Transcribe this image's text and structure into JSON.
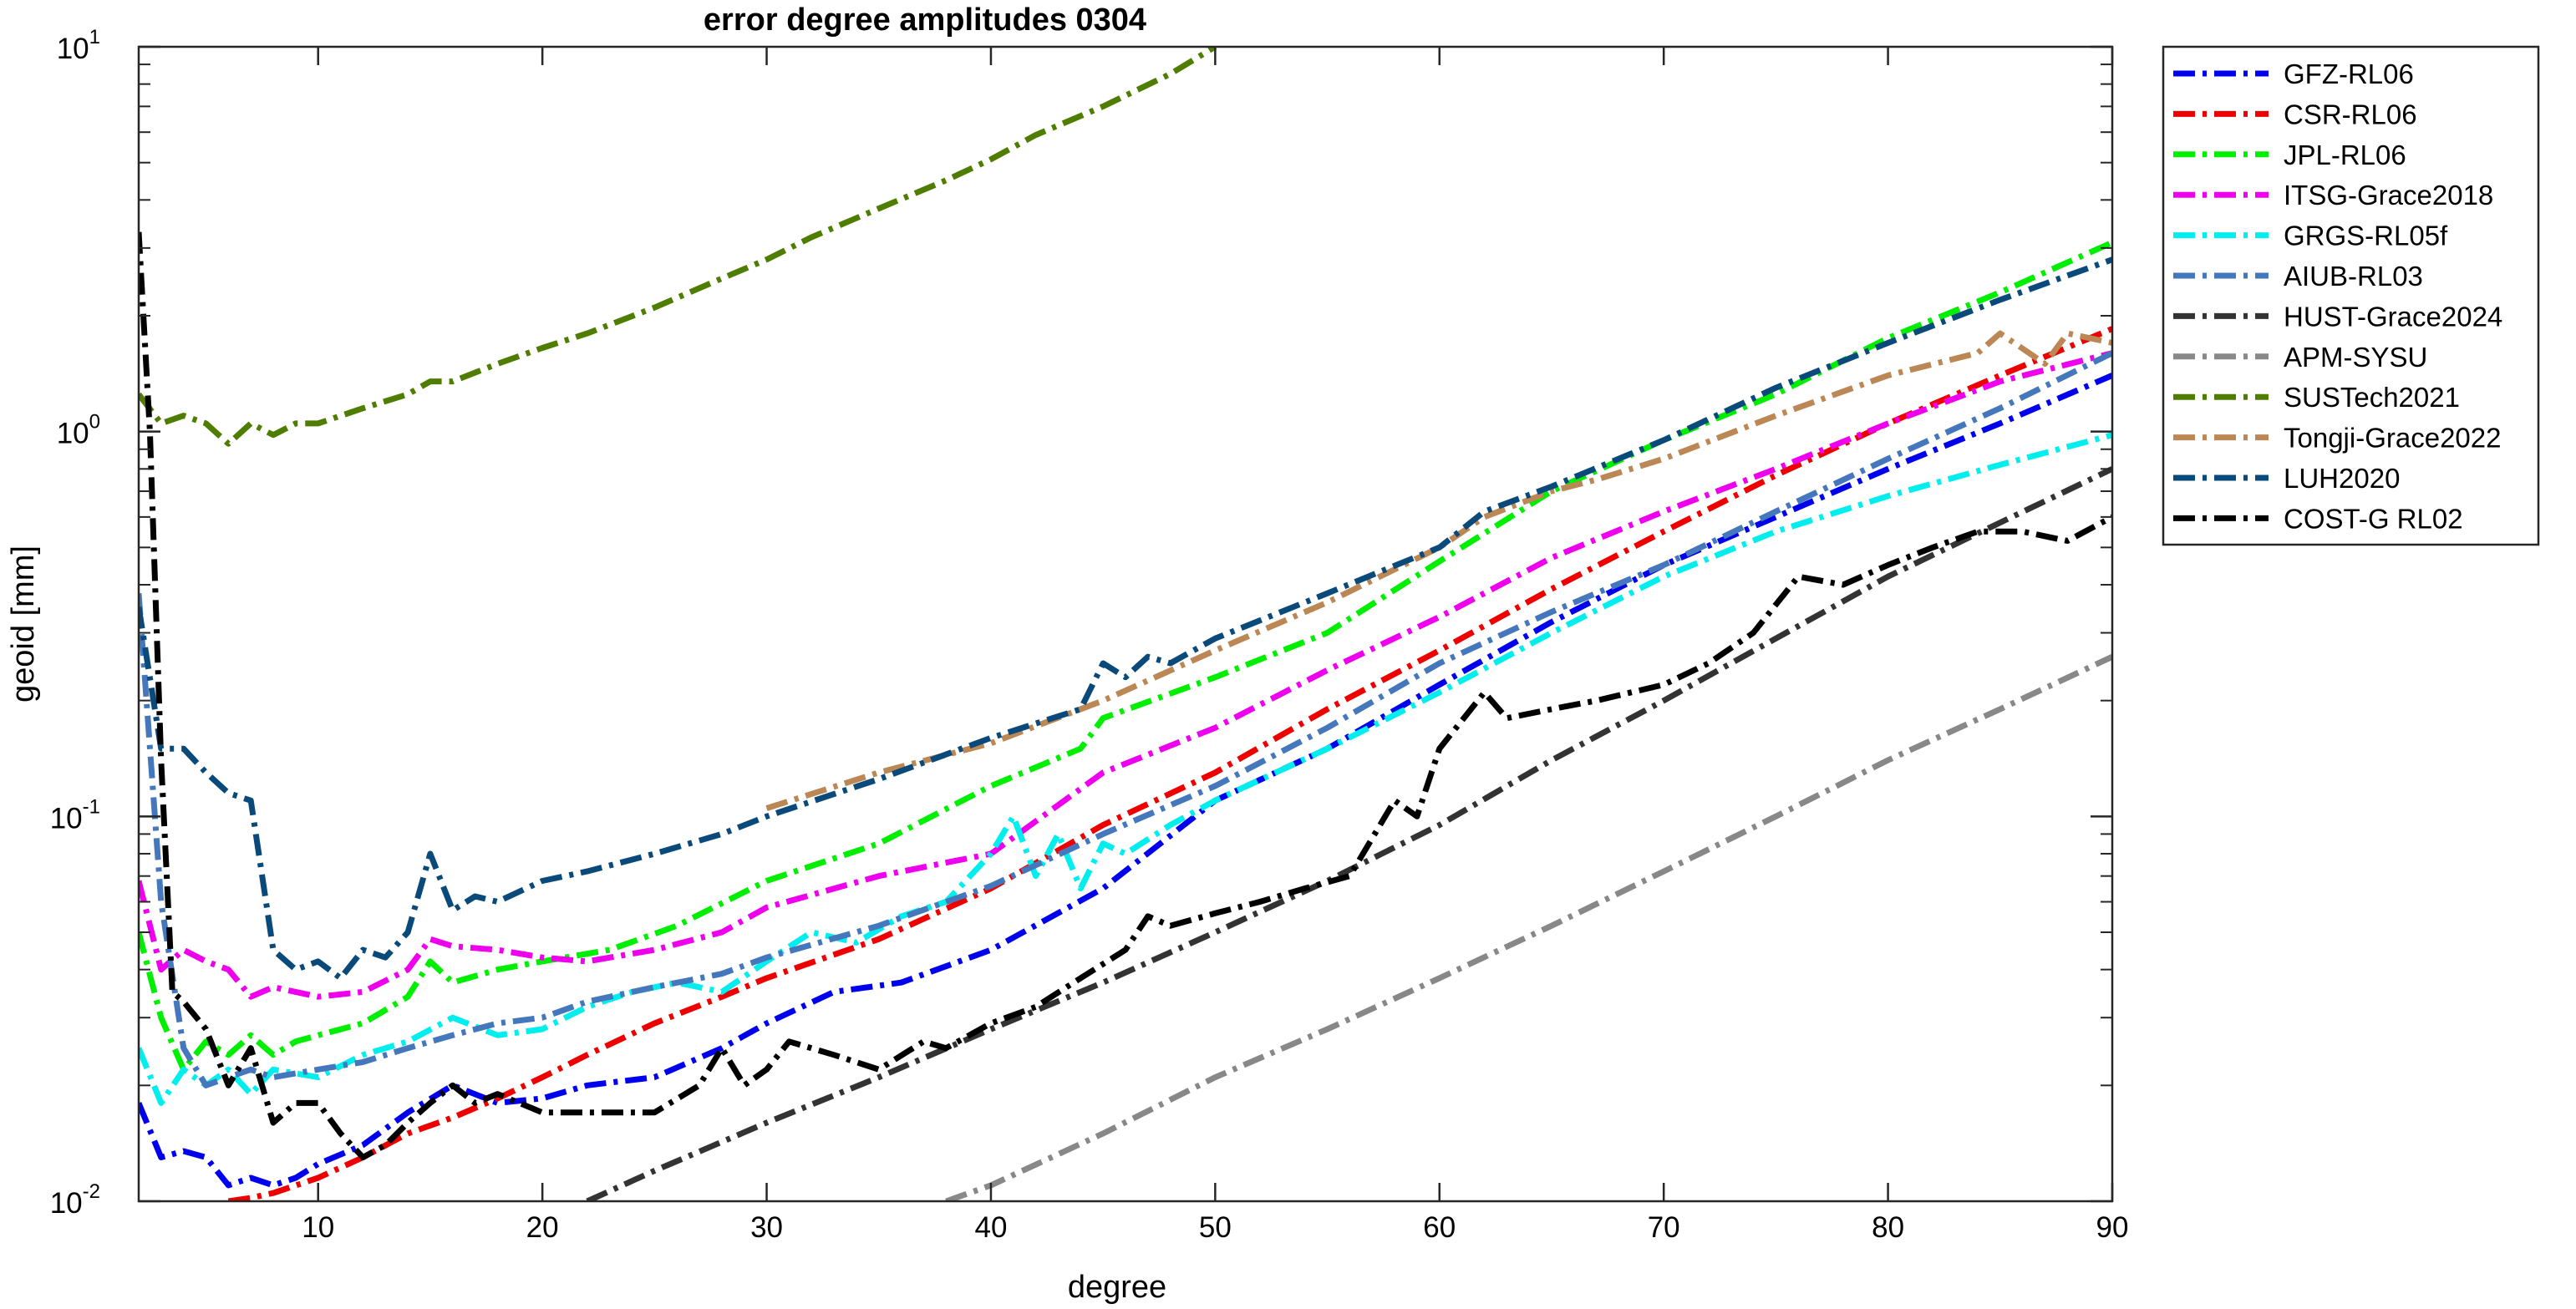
{
  "chart_data": {
    "type": "line",
    "title": "error degree amplitudes 0304",
    "xlabel": "degree",
    "ylabel": "geoid [mm]",
    "x_range": [
      2,
      90
    ],
    "y_range": [
      0.01,
      10
    ],
    "y_scale": "log",
    "grid": false,
    "legend_position": "outside-right",
    "x_ticks": [
      10,
      20,
      30,
      40,
      50,
      60,
      70,
      80,
      90
    ],
    "y_ticks": [
      {
        "value": 0.01,
        "base": "10",
        "exp": "-2"
      },
      {
        "value": 0.1,
        "base": "10",
        "exp": "-1"
      },
      {
        "value": 1,
        "base": "10",
        "exp": "0"
      },
      {
        "value": 10,
        "base": "10",
        "exp": "1"
      }
    ],
    "series": [
      {
        "name": "GFZ-RL06",
        "color": "#0000ee",
        "x": [
          2,
          3,
          4,
          5,
          6,
          7,
          8,
          9,
          10,
          12,
          14,
          16,
          18,
          20,
          22,
          25,
          28,
          30,
          33,
          36,
          40,
          45,
          50,
          55,
          60,
          65,
          70,
          75,
          80,
          85,
          90
        ],
        "y": [
          0.018,
          0.013,
          0.0135,
          0.013,
          0.011,
          0.0115,
          0.011,
          0.0115,
          0.0125,
          0.014,
          0.017,
          0.02,
          0.018,
          0.0185,
          0.02,
          0.021,
          0.025,
          0.029,
          0.035,
          0.037,
          0.045,
          0.065,
          0.11,
          0.15,
          0.22,
          0.32,
          0.45,
          0.6,
          0.8,
          1.05,
          1.4
        ]
      },
      {
        "name": "CSR-RL06",
        "color": "#ee0000",
        "x": [
          6,
          7,
          8,
          10,
          12,
          14,
          16,
          18,
          20,
          22,
          25,
          28,
          30,
          35,
          40,
          45,
          50,
          55,
          60,
          65,
          70,
          75,
          80,
          85,
          90
        ],
        "y": [
          0.01,
          0.0102,
          0.0105,
          0.0115,
          0.013,
          0.015,
          0.0165,
          0.0185,
          0.021,
          0.024,
          0.029,
          0.034,
          0.038,
          0.048,
          0.065,
          0.095,
          0.13,
          0.19,
          0.27,
          0.39,
          0.55,
          0.77,
          1.05,
          1.4,
          1.85
        ]
      },
      {
        "name": "JPL-RL06",
        "color": "#00ee00",
        "x": [
          2,
          3,
          4,
          5,
          6,
          7,
          8,
          9,
          10,
          12,
          14,
          15,
          16,
          18,
          20,
          23,
          26,
          30,
          35,
          40,
          44,
          45,
          50,
          55,
          60,
          65,
          70,
          75,
          80,
          85,
          90
        ],
        "y": [
          0.05,
          0.03,
          0.022,
          0.026,
          0.024,
          0.027,
          0.024,
          0.026,
          0.027,
          0.029,
          0.034,
          0.042,
          0.037,
          0.04,
          0.042,
          0.045,
          0.052,
          0.068,
          0.085,
          0.12,
          0.15,
          0.18,
          0.23,
          0.3,
          0.46,
          0.7,
          0.95,
          1.25,
          1.75,
          2.3,
          3.1
        ]
      },
      {
        "name": "ITSG-Grace2018",
        "color": "#ee00ee",
        "x": [
          2,
          3,
          4,
          5,
          6,
          7,
          8,
          10,
          12,
          14,
          15,
          16,
          18,
          20,
          22,
          25,
          28,
          30,
          35,
          40,
          45,
          50,
          55,
          60,
          65,
          70,
          75,
          80,
          85,
          90
        ],
        "y": [
          0.068,
          0.04,
          0.045,
          0.042,
          0.04,
          0.034,
          0.036,
          0.034,
          0.035,
          0.04,
          0.048,
          0.046,
          0.045,
          0.043,
          0.042,
          0.045,
          0.05,
          0.058,
          0.07,
          0.08,
          0.13,
          0.17,
          0.24,
          0.33,
          0.47,
          0.62,
          0.8,
          1.05,
          1.35,
          1.6
        ]
      },
      {
        "name": "GRGS-RL05f",
        "color": "#00eeee",
        "x": [
          2,
          3,
          4,
          5,
          6,
          7,
          8,
          10,
          12,
          14,
          16,
          18,
          20,
          22,
          24,
          26,
          28,
          30,
          32,
          34,
          36,
          38,
          40,
          41,
          42,
          43,
          44,
          45,
          46,
          48,
          50,
          55,
          60,
          65,
          70,
          75,
          80,
          85,
          90
        ],
        "y": [
          0.025,
          0.018,
          0.022,
          0.02,
          0.022,
          0.019,
          0.022,
          0.021,
          0.024,
          0.026,
          0.03,
          0.027,
          0.028,
          0.032,
          0.035,
          0.037,
          0.035,
          0.042,
          0.05,
          0.047,
          0.055,
          0.06,
          0.08,
          0.1,
          0.07,
          0.09,
          0.065,
          0.085,
          0.08,
          0.095,
          0.11,
          0.15,
          0.21,
          0.3,
          0.42,
          0.55,
          0.68,
          0.82,
          0.98
        ]
      },
      {
        "name": "AIUB-RL03",
        "color": "#4477bb",
        "x": [
          2,
          3,
          4,
          5,
          6,
          7,
          8,
          10,
          12,
          14,
          16,
          18,
          20,
          22,
          25,
          28,
          30,
          35,
          40,
          45,
          50,
          55,
          60,
          65,
          70,
          75,
          80,
          85,
          90
        ],
        "y": [
          0.38,
          0.06,
          0.025,
          0.02,
          0.021,
          0.022,
          0.021,
          0.022,
          0.023,
          0.025,
          0.027,
          0.029,
          0.03,
          0.033,
          0.036,
          0.039,
          0.043,
          0.052,
          0.066,
          0.09,
          0.12,
          0.17,
          0.25,
          0.34,
          0.45,
          0.62,
          0.85,
          1.15,
          1.6
        ]
      },
      {
        "name": "HUST-Grace2024",
        "color": "#333333",
        "x": [
          22,
          25,
          30,
          35,
          40,
          45,
          50,
          55,
          60,
          65,
          70,
          75,
          80,
          85,
          90
        ],
        "y": [
          0.01,
          0.012,
          0.016,
          0.021,
          0.028,
          0.037,
          0.05,
          0.068,
          0.095,
          0.14,
          0.2,
          0.29,
          0.42,
          0.58,
          0.8
        ]
      },
      {
        "name": "APM-SYSU",
        "color": "#888888",
        "x": [
          38,
          40,
          45,
          50,
          55,
          60,
          65,
          70,
          75,
          80,
          85,
          90
        ],
        "y": [
          0.01,
          0.011,
          0.015,
          0.021,
          0.028,
          0.038,
          0.052,
          0.072,
          0.1,
          0.14,
          0.19,
          0.26
        ]
      },
      {
        "name": "SUSTech2021",
        "color": "#4e7d00",
        "x": [
          2,
          3,
          4,
          5,
          6,
          7,
          8,
          9,
          10,
          12,
          14,
          15,
          16,
          18,
          20,
          22,
          25,
          28,
          30,
          32,
          35,
          38,
          40,
          42,
          45,
          48,
          50
        ],
        "y": [
          1.25,
          1.05,
          1.1,
          1.05,
          0.93,
          1.05,
          0.98,
          1.05,
          1.05,
          1.15,
          1.25,
          1.35,
          1.35,
          1.5,
          1.65,
          1.8,
          2.1,
          2.5,
          2.8,
          3.2,
          3.8,
          4.5,
          5.1,
          5.9,
          7.0,
          8.5,
          10.0
        ]
      },
      {
        "name": "Tongji-Grace2022",
        "color": "#bb8855",
        "x": [
          30,
          35,
          40,
          45,
          50,
          55,
          60,
          62,
          65,
          67,
          70,
          75,
          80,
          84,
          85,
          87,
          88,
          90
        ],
        "y": [
          0.105,
          0.13,
          0.155,
          0.2,
          0.27,
          0.36,
          0.5,
          0.6,
          0.7,
          0.75,
          0.85,
          1.1,
          1.4,
          1.6,
          1.8,
          1.5,
          1.8,
          1.7
        ]
      },
      {
        "name": "LUH2020",
        "color": "#0a4a7a",
        "x": [
          2,
          3,
          4,
          5,
          6,
          7,
          8,
          9,
          10,
          11,
          12,
          13,
          14,
          15,
          16,
          17,
          18,
          20,
          22,
          25,
          28,
          30,
          35,
          40,
          44,
          45,
          46,
          47,
          48,
          50,
          55,
          60,
          62,
          65,
          70,
          75,
          80,
          85,
          90
        ],
        "y": [
          0.35,
          0.15,
          0.15,
          0.13,
          0.115,
          0.11,
          0.045,
          0.04,
          0.042,
          0.038,
          0.045,
          0.043,
          0.05,
          0.08,
          0.057,
          0.062,
          0.06,
          0.068,
          0.072,
          0.08,
          0.09,
          0.1,
          0.125,
          0.16,
          0.19,
          0.25,
          0.23,
          0.26,
          0.25,
          0.29,
          0.38,
          0.5,
          0.62,
          0.72,
          0.95,
          1.3,
          1.7,
          2.2,
          2.8
        ]
      },
      {
        "name": "COST-G RL02",
        "color": "#000000",
        "x": [
          2,
          2.5,
          3,
          3.5,
          4,
          5,
          6,
          7,
          8,
          9,
          10,
          11,
          12,
          13,
          14,
          15,
          16,
          17,
          18,
          20,
          22,
          25,
          27,
          28,
          29,
          30,
          31,
          33,
          35,
          37,
          38,
          40,
          42,
          44,
          46,
          47,
          48,
          50,
          52,
          54,
          56,
          58,
          59,
          60,
          62,
          63,
          65,
          67,
          70,
          72,
          74,
          76,
          78,
          80,
          82,
          84,
          86,
          88,
          90
        ],
        "y": [
          3.3,
          1.0,
          0.14,
          0.035,
          0.033,
          0.028,
          0.02,
          0.025,
          0.016,
          0.018,
          0.018,
          0.015,
          0.013,
          0.014,
          0.016,
          0.018,
          0.02,
          0.018,
          0.019,
          0.017,
          0.017,
          0.017,
          0.02,
          0.025,
          0.02,
          0.022,
          0.026,
          0.024,
          0.022,
          0.026,
          0.025,
          0.029,
          0.032,
          0.038,
          0.045,
          0.055,
          0.052,
          0.056,
          0.06,
          0.065,
          0.07,
          0.11,
          0.1,
          0.15,
          0.21,
          0.18,
          0.19,
          0.2,
          0.22,
          0.25,
          0.3,
          0.42,
          0.4,
          0.45,
          0.5,
          0.55,
          0.55,
          0.52,
          0.6
        ]
      }
    ]
  }
}
